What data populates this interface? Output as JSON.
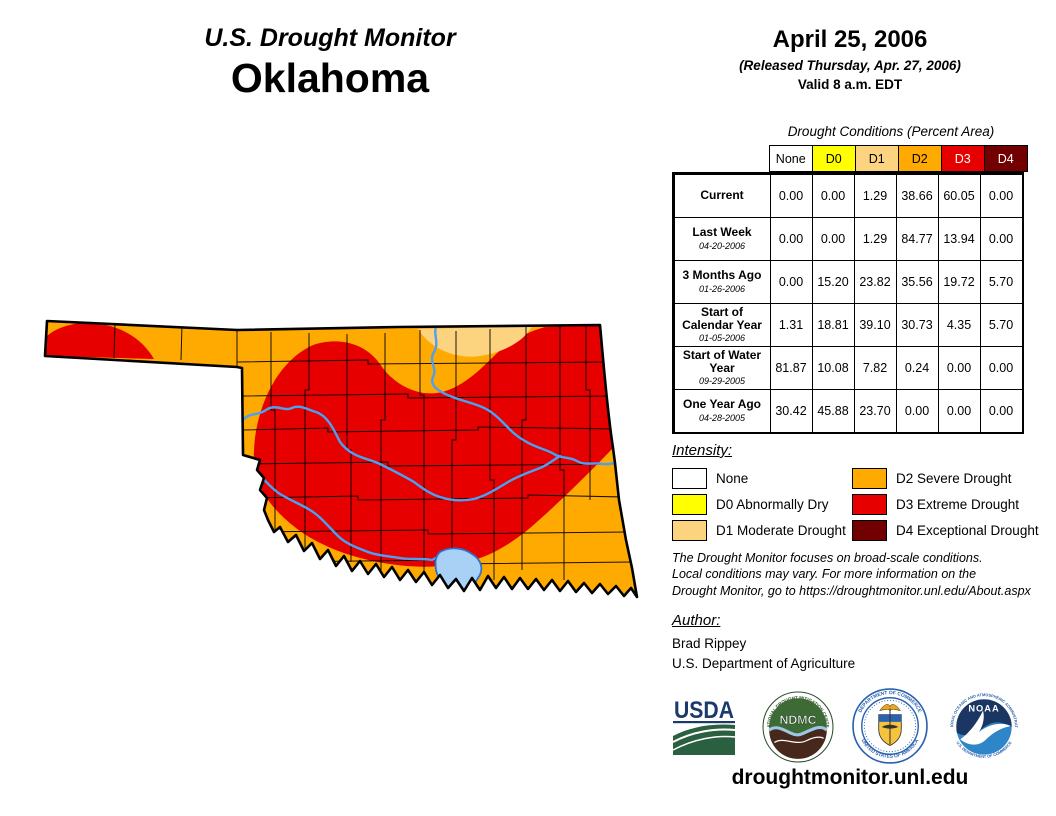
{
  "title": {
    "line1": "U.S. Drought Monitor",
    "line2": "Oklahoma"
  },
  "header": {
    "date": "April 25, 2006",
    "released": "(Released Thursday, Apr. 27, 2006)",
    "valid": "Valid 8 a.m. EDT"
  },
  "table": {
    "caption": "Drought Conditions (Percent Area)",
    "columns": [
      "None",
      "D0",
      "D1",
      "D2",
      "D3",
      "D4"
    ],
    "rows": [
      {
        "label": "Current",
        "date": "",
        "values": [
          "0.00",
          "0.00",
          "1.29",
          "38.66",
          "60.05",
          "0.00"
        ]
      },
      {
        "label": "Last Week",
        "date": "04-20-2006",
        "values": [
          "0.00",
          "0.00",
          "1.29",
          "84.77",
          "13.94",
          "0.00"
        ]
      },
      {
        "label": "3 Months Ago",
        "date": "01-26-2006",
        "values": [
          "0.00",
          "15.20",
          "23.82",
          "35.56",
          "19.72",
          "5.70"
        ]
      },
      {
        "label": "Start of Calendar Year",
        "date": "01-05-2006",
        "values": [
          "1.31",
          "18.81",
          "39.10",
          "30.73",
          "4.35",
          "5.70"
        ]
      },
      {
        "label": "Start of Water Year",
        "date": "09-29-2005",
        "values": [
          "81.87",
          "10.08",
          "7.82",
          "0.24",
          "0.00",
          "0.00"
        ]
      },
      {
        "label": "One Year Ago",
        "date": "04-28-2005",
        "values": [
          "30.42",
          "45.88",
          "23.70",
          "0.00",
          "0.00",
          "0.00"
        ]
      }
    ]
  },
  "drought_colors": {
    "None": "#FFFFFF",
    "D0": "#FFFF00",
    "D1": "#FCD37F",
    "D2": "#FFAA00",
    "D3": "#E60000",
    "D4": "#730000"
  },
  "legend": {
    "title": "Intensity:",
    "items": [
      {
        "code": "None",
        "label": "None"
      },
      {
        "code": "D0",
        "label": "D0 Abnormally Dry"
      },
      {
        "code": "D1",
        "label": "D1 Moderate Drought"
      },
      {
        "code": "D2",
        "label": "D2 Severe Drought"
      },
      {
        "code": "D3",
        "label": "D3 Extreme Drought"
      },
      {
        "code": "D4",
        "label": "D4 Exceptional Drought"
      }
    ]
  },
  "disclaimer": {
    "line1": "The Drought Monitor focuses on broad-scale conditions.",
    "line2": "Local conditions may vary. For more information on the",
    "line3": "Drought Monitor, go to https://droughtmonitor.unl.edu/About.aspx"
  },
  "author": {
    "title": "Author:",
    "name": "Brad Rippey",
    "org": "U.S. Department of Agriculture"
  },
  "logos": {
    "usda": {
      "text": "USDA"
    },
    "ndmc": {
      "text": "NDMC",
      "ring_top": "NATIONAL DROUGHT MITIGATION CENTER",
      "ring_bottom": "UNIVERSITY OF NEBRASKA"
    },
    "commerce": {
      "ring_top": "DEPARTMENT OF COMMERCE",
      "ring_bottom": "UNITED STATES OF AMERICA"
    },
    "noaa": {
      "text": "NOAA",
      "ring_top": "NATIONAL OCEANIC AND ATMOSPHERIC ADMINISTRATION",
      "ring_bottom": "U.S. DEPARTMENT OF COMMERCE"
    }
  },
  "footer": {
    "url": "droughtmonitor.unl.edu"
  },
  "map": {
    "state": "Oklahoma",
    "categories_shown": [
      "D1",
      "D2",
      "D3"
    ],
    "river_color": "#4AA1F2",
    "lake_fill": "#A9D0F5"
  }
}
